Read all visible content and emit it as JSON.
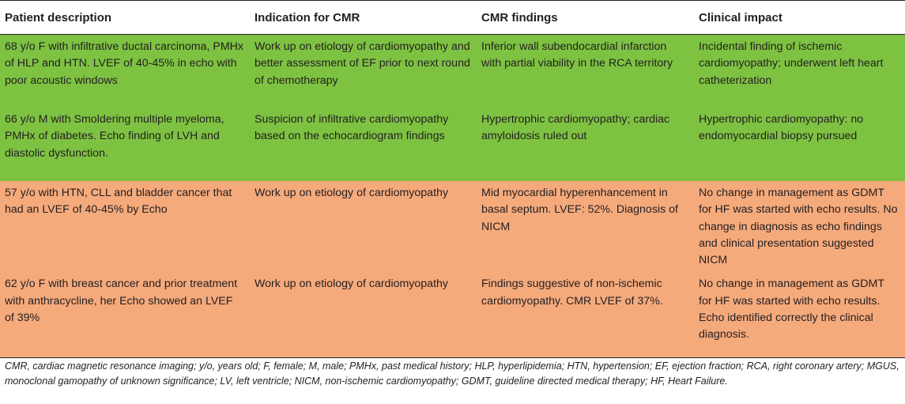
{
  "table": {
    "headers": [
      "Patient description",
      "Indication for CMR",
      "CMR findings",
      "Clinical impact"
    ],
    "rows": [
      {
        "color": "#7ec242",
        "cells": [
          "68 y/o F with infiltrative ductal carcinoma, PMHx of HLP and HTN. LVEF of 40-45% in echo with poor acoustic windows",
          "Work up on etiology of cardiomyopathy and better assessment of EF prior to next round of chemotherapy",
          "Inferior wall subendocardial infarction with partial viability in the RCA territory",
          "Incidental finding of ischemic cardiomyopathy; underwent left heart catheterization"
        ]
      },
      {
        "color": "#7ec242",
        "cells": [
          "66 y/o M with Smoldering multiple myeloma, PMHx of diabetes. Echo finding of LVH and diastolic dysfunction.",
          "Suspicion of infiltrative cardiomyopathy based on the echocardiogram findings",
          "Hypertrophic cardiomyopathy; cardiac amyloidosis ruled out",
          "Hypertrophic cardiomyopathy: no endomyocardial biopsy pursued"
        ]
      },
      {
        "color": "#f5aa7c",
        "cells": [
          "57 y/o with HTN, CLL and bladder cancer that had an LVEF of 40-45% by Echo",
          "Work up on etiology of cardiomyopathy",
          "Mid myocardial hyperenhancement in basal septum. LVEF: 52%. Diagnosis of NICM",
          "No change in management as GDMT for HF was started with echo results. No change in diagnosis as echo findings and clinical presentation suggested NICM"
        ]
      },
      {
        "color": "#f5aa7c",
        "cells": [
          "62 y/o F with breast cancer and prior treatment with anthracycline, her Echo showed an LVEF of 39%",
          "Work up on etiology of cardiomyopathy",
          "Findings suggestive of non-ischemic cardiomyopathy. CMR LVEF of 37%.",
          "No change in management as GDMT for HF was started with echo results. Echo identified correctly the clinical diagnosis."
        ]
      }
    ]
  },
  "footnote": "CMR, cardiac magnetic resonance imaging; y/o, years old; F, female; M, male; PMHx, past medical history; HLP, hyperlipidemia; HTN, hypertension; EF, ejection fraction; RCA, right coronary artery; MGUS, monoclonal gamopathy of unknown significance; LV, left ventricle; NICM, non-ischemic cardiomyopathy; GDMT, guideline directed medical therapy; HF, Heart Failure."
}
